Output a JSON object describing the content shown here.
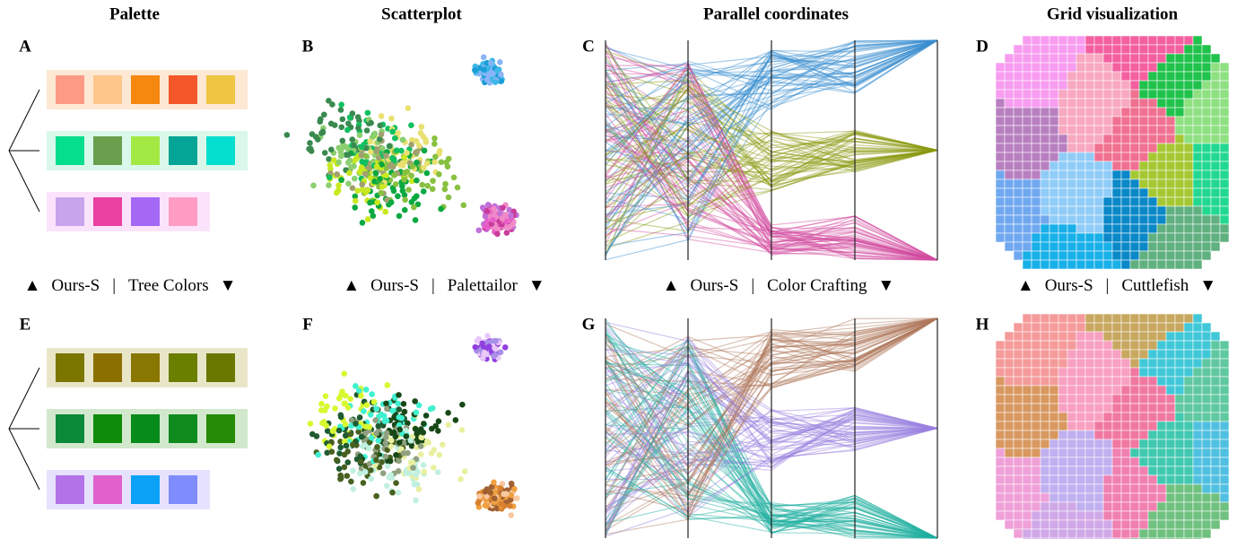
{
  "columns": [
    "Palette",
    "Scatterplot",
    "Parallel coordinates",
    "Grid visualization"
  ],
  "panels": [
    "A",
    "B",
    "C",
    "D",
    "E",
    "F",
    "G",
    "H"
  ],
  "markers": {
    "up": "▲",
    "down": "▼",
    "separator": "|"
  },
  "comparisons": [
    {
      "ours": "Ours-S",
      "other": "Tree Colors"
    },
    {
      "ours": "Ours-S",
      "other": "Palettailor"
    },
    {
      "ours": "Ours-S",
      "other": "Color Crafting"
    },
    {
      "ours": "Ours-S",
      "other": "Cuttlefish"
    }
  ],
  "palettes": [
    [
      {
        "background": "#fde8d3",
        "colors": [
          "#fd9a85",
          "#fec68b",
          "#f6870f",
          "#f3572a",
          "#eec643"
        ]
      },
      {
        "background": "#d9f8ea",
        "colors": [
          "#05de8c",
          "#6a9f4e",
          "#a2e944",
          "#04a596",
          "#05dfd0"
        ]
      },
      {
        "background": "#fbe4fb",
        "colors": [
          "#c7a4ec",
          "#e940a1",
          "#a468f4",
          "#fe9cc4"
        ]
      }
    ],
    [
      {
        "background": "#e9e6c8",
        "colors": [
          "#7a7600",
          "#8a7000",
          "#887700",
          "#6a7e00",
          "#6a7800"
        ]
      },
      {
        "background": "#d2e8cc",
        "colors": [
          "#0b8a3a",
          "#0f8b0a",
          "#078b1a",
          "#0f8b1e",
          "#258b05"
        ]
      },
      {
        "background": "#e6e2fd",
        "colors": [
          "#b472e8",
          "#e161cc",
          "#0ba1f7",
          "#7f8cfd"
        ]
      }
    ]
  ],
  "scatter_colors": [
    {
      "blue": [
        "#8ab4f8",
        "#1a9ed6",
        "#3db8e8"
      ],
      "pink": [
        "#e85ec8",
        "#f08ac8",
        "#c93c9c",
        "#c070d8"
      ],
      "green": [
        "#3a8a50",
        "#8ccf70",
        "#c8e820",
        "#10c060",
        "#a0a070",
        "#0aa840",
        "#e8e070",
        "#88c040"
      ]
    },
    {
      "blue": [
        "#a890e8",
        "#9040e0",
        "#e8c8f8"
      ],
      "pink": [
        "#f0a040",
        "#a06030",
        "#f8c8a0",
        "#d88030"
      ],
      "green": [
        "#d8f830",
        "#205a30",
        "#486020",
        "#40f0d0",
        "#90a080",
        "#c0f0e0",
        "#184818",
        "#e8f0a0"
      ]
    }
  ],
  "parallel_colors": [
    [
      "#3a8fd0",
      "#8a9a10",
      "#d24ca0"
    ],
    [
      "#b0785a",
      "#9a80e0",
      "#20b0a0"
    ]
  ],
  "grid_colors": [
    [
      "#f79cf0",
      "#f45fa0",
      "#1fc24a",
      "#8ee080",
      "#b87fc0",
      "#f8a8c0",
      "#f07090",
      "#a5c832",
      "#22d890",
      "#70a8f0",
      "#90ccf8",
      "#0a88c8",
      "#18b0e8",
      "#60b080"
    ],
    [
      "#f59a9a",
      "#c8a860",
      "#40c8d8",
      "#60c8a0",
      "#d89860",
      "#f8a0c0",
      "#f078a0",
      "#40c8b0",
      "#50c0e0",
      "#f0a0d8",
      "#c0b0f0",
      "#f080b0",
      "#d0a8e8",
      "#70c080"
    ]
  ]
}
